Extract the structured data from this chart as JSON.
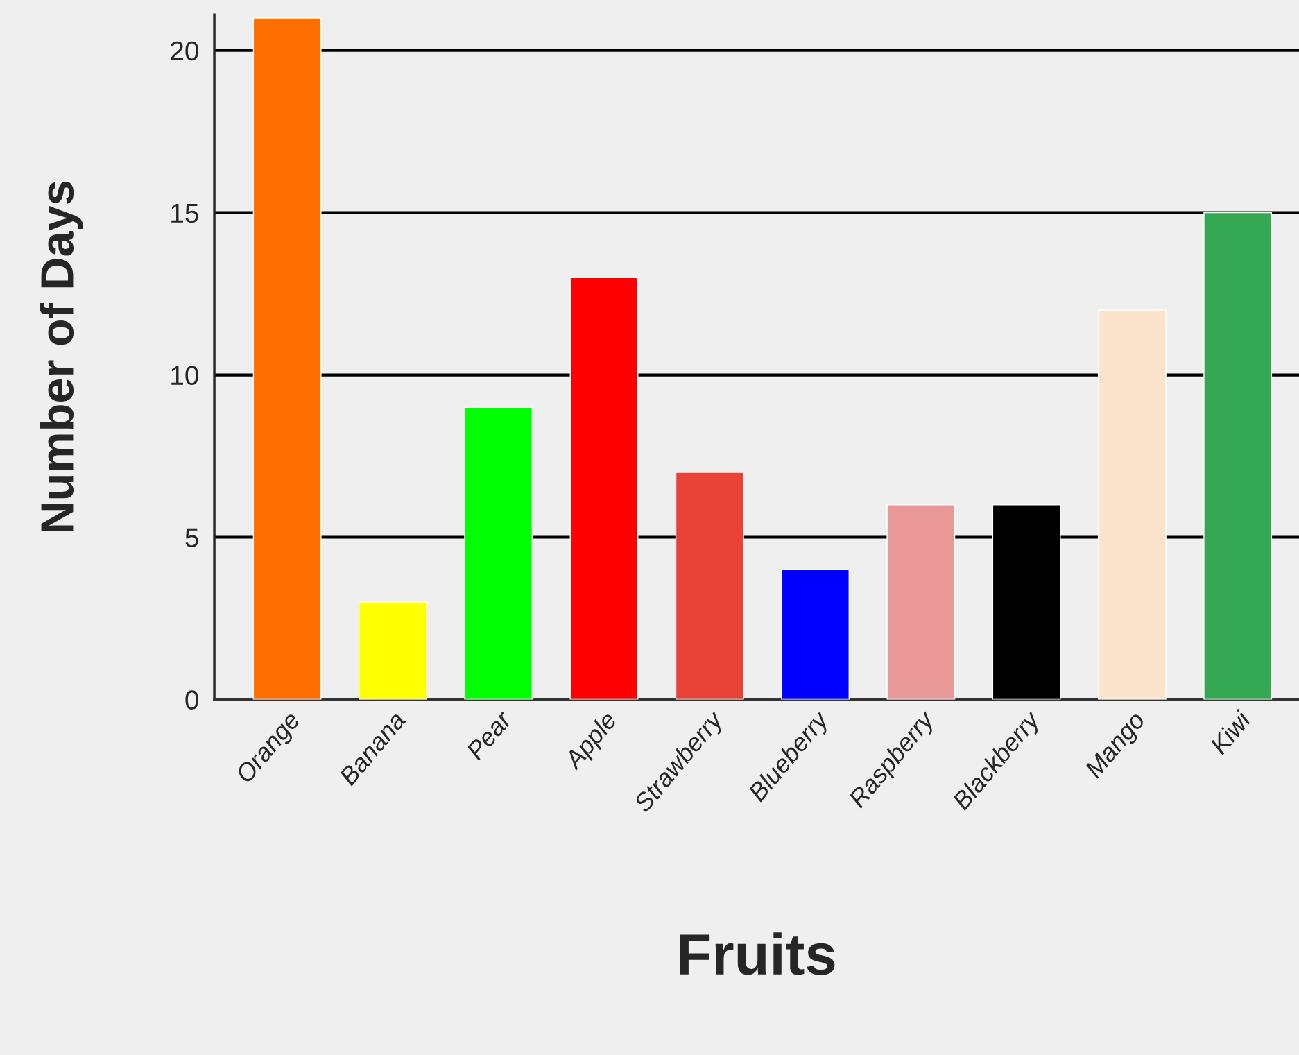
{
  "chart_data": {
    "type": "bar",
    "xlabel": "Fruits",
    "ylabel": "Number of Days",
    "categories": [
      "Orange",
      "Banana",
      "Pear",
      "Apple",
      "Strawberry",
      "Blueberry",
      "Raspberry",
      "Blackberry",
      "Mango",
      "Kiwi"
    ],
    "values": [
      21,
      3,
      9,
      13,
      7,
      4,
      6,
      6,
      12,
      15
    ],
    "colors": [
      "#ff6f00",
      "#ffff00",
      "#00ff00",
      "#ff0000",
      "#e84336",
      "#0000ff",
      "#e99898",
      "#000000",
      "#fce4cc",
      "#34a853"
    ],
    "ylim": [
      0,
      21.1
    ],
    "yticks": [
      0,
      5,
      10,
      15,
      20
    ],
    "grid": "y",
    "legend": false
  }
}
